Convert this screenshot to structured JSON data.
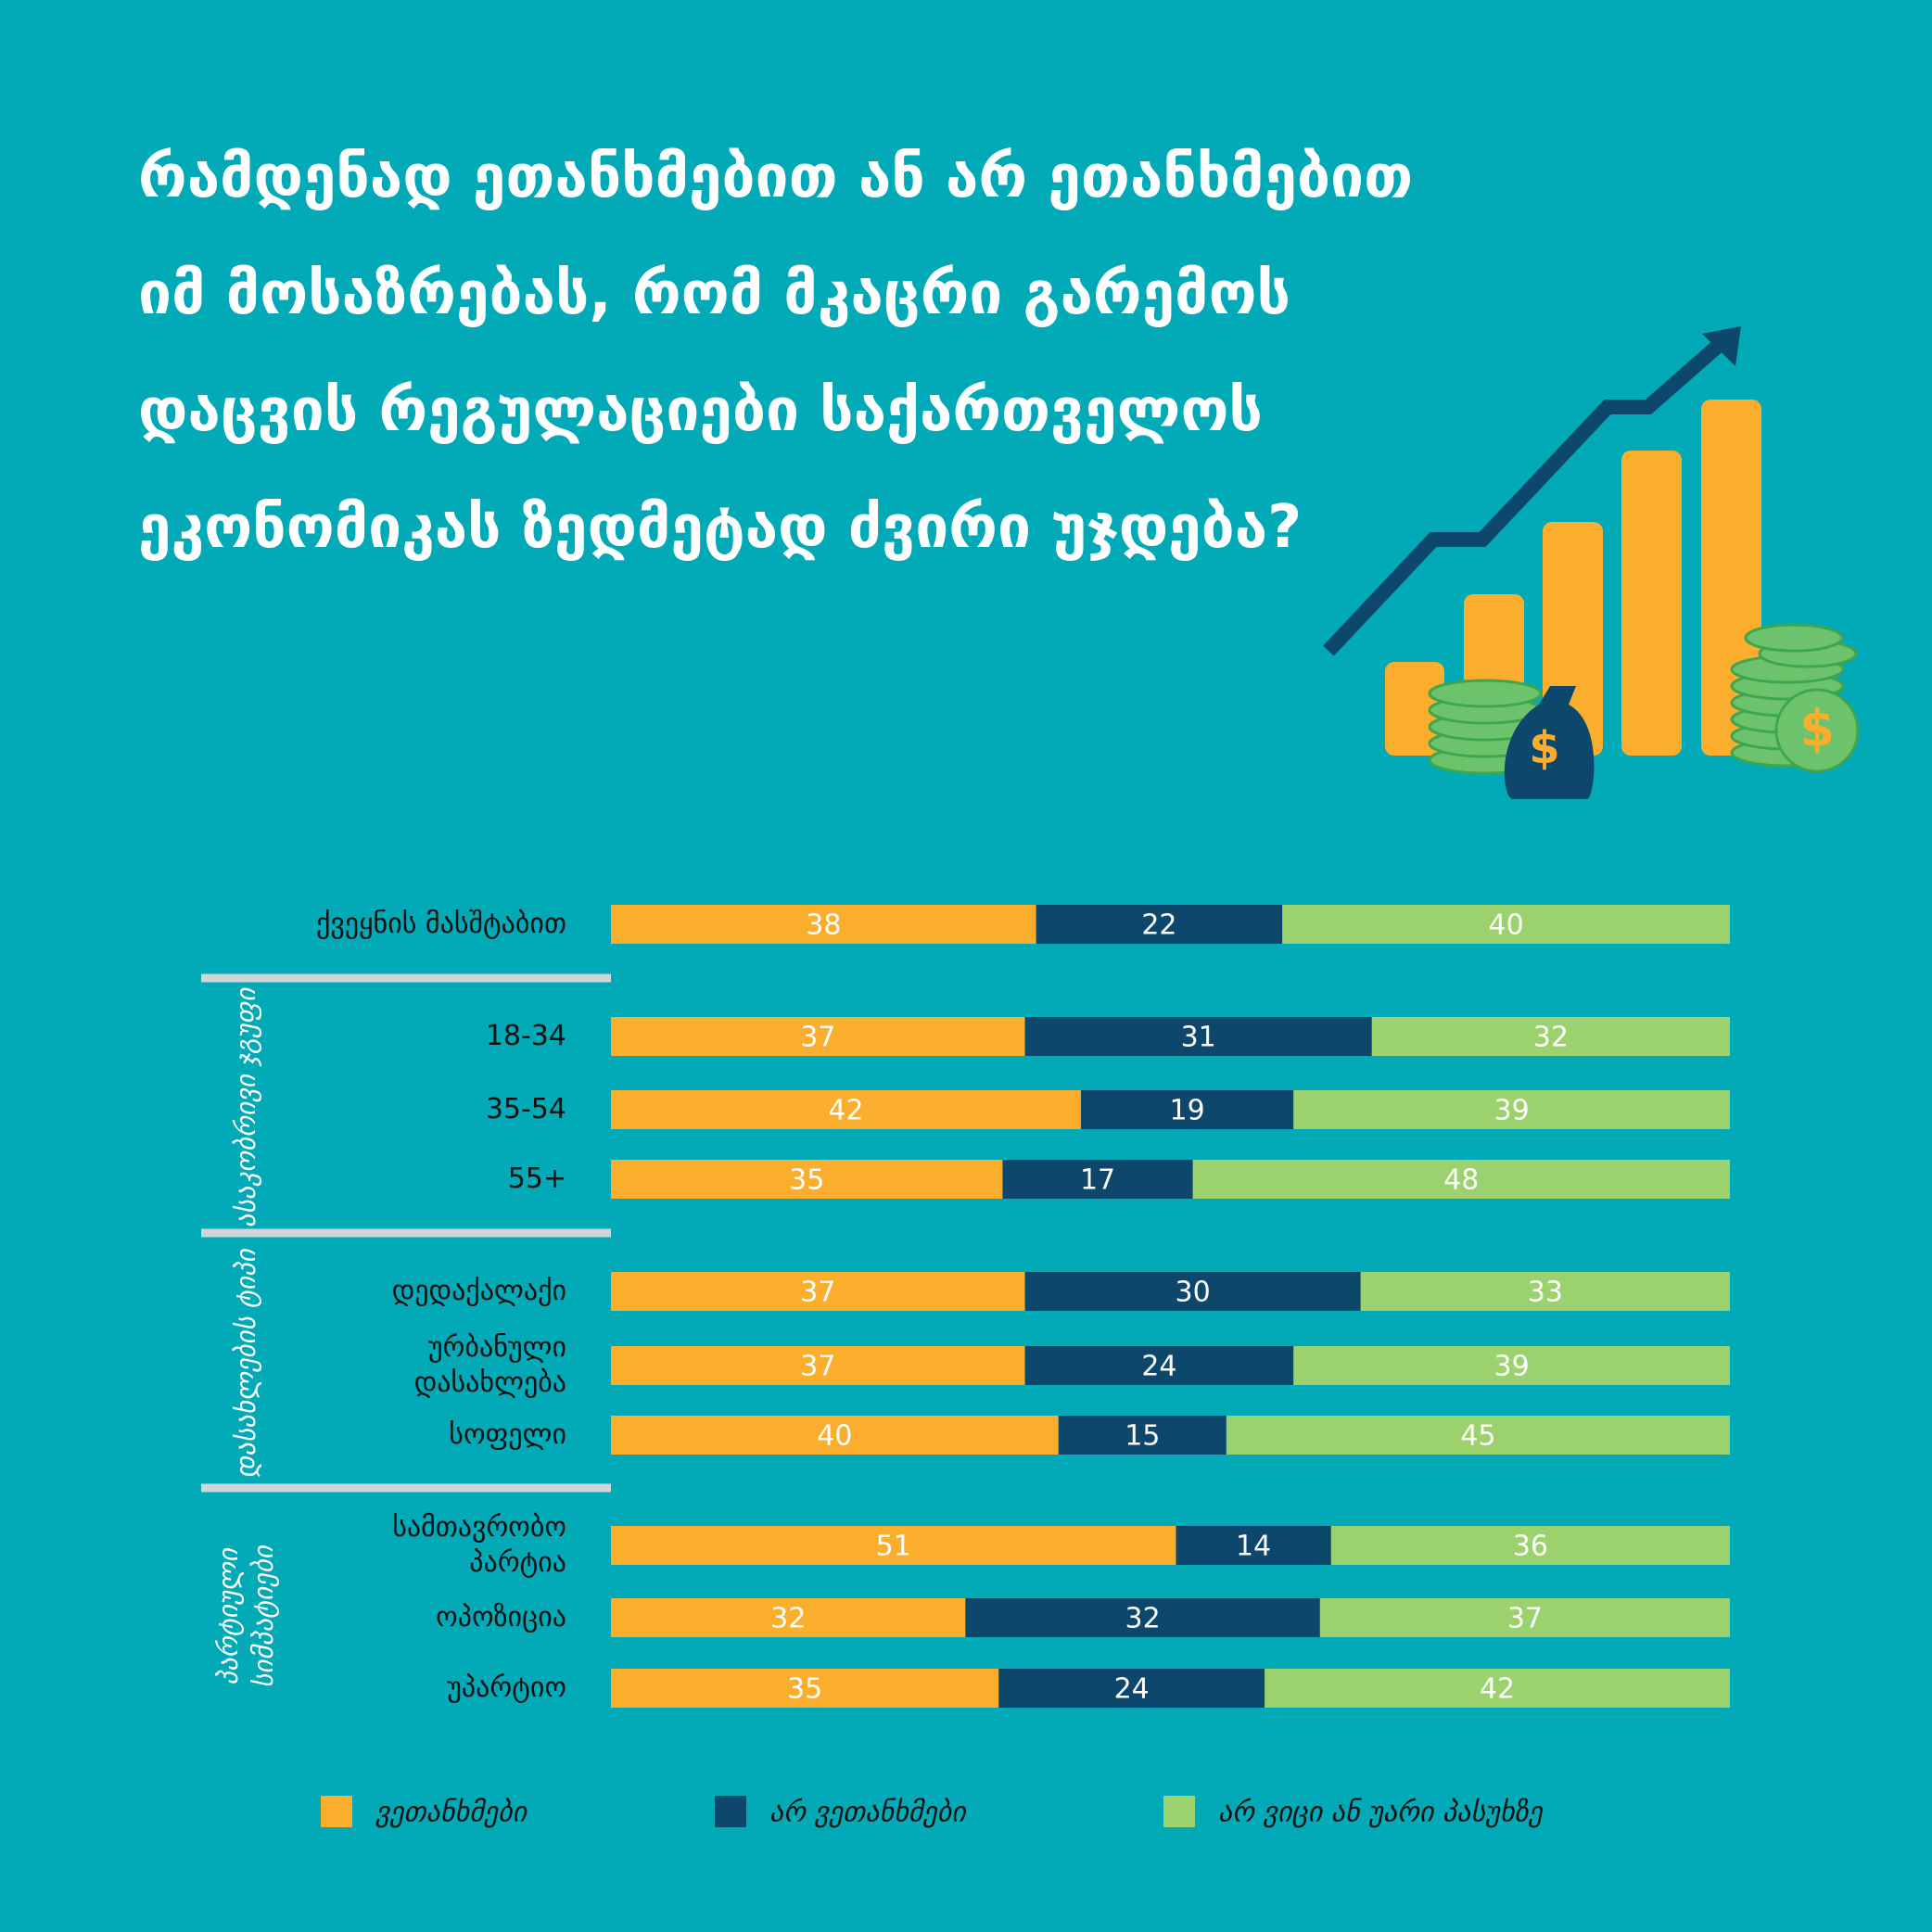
{
  "chart_data": {
    "type": "bar",
    "orientation": "horizontal",
    "stacked": true,
    "title": "რამდენად ეთანხმებით ან არ ეთანხმებით იმ მოსაზრებას, რომ მკაცრი გარემოს დაცვის რეგულაციები საქართველოს ეკონომიკას ზედმეტად ძვირი უჯდება?",
    "categories": [
      "ქვეყნის მასშტაბით",
      "18-34",
      "35-54",
      "55+",
      "დედაქალაქი",
      "ურბანული დასახლება",
      "სოფელი",
      "სამთავრობო პარტია",
      "ოპოზიცია",
      "უპარტიო"
    ],
    "groups": [
      {
        "name": "ასაკობრივი ჯგუფი",
        "first": 1,
        "count": 3
      },
      {
        "name": "დასახლების ტიპი",
        "first": 4,
        "count": 3
      },
      {
        "name": "პარტიული სიმპატიები",
        "first": 7,
        "count": 3
      }
    ],
    "series": [
      {
        "name": "ვეთანხმები",
        "color": "#fbae2d",
        "values": [
          38,
          37,
          42,
          35,
          37,
          37,
          40,
          51,
          32,
          35
        ]
      },
      {
        "name": "არ ვეთანხმები",
        "color": "#0d476b",
        "values": [
          22,
          31,
          19,
          17,
          30,
          24,
          15,
          14,
          32,
          24
        ]
      },
      {
        "name": "არ ვიცი ან უარი პასუხზე",
        "color": "#9cd26e",
        "values": [
          40,
          32,
          39,
          48,
          33,
          39,
          45,
          36,
          37,
          42
        ]
      }
    ],
    "legend": "bottom"
  }
}
